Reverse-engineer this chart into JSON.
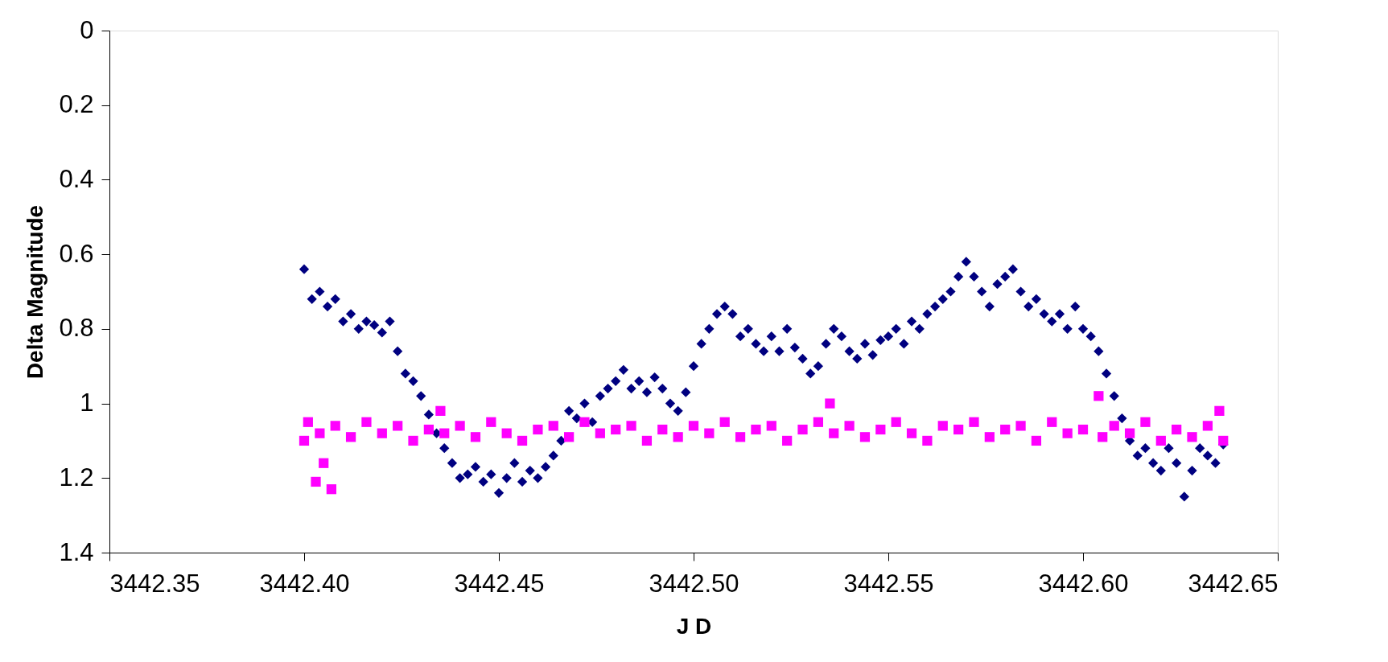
{
  "chart_data": {
    "type": "scatter",
    "xlabel": "J D",
    "ylabel": "Delta Magnitude",
    "xlim": [
      3442.35,
      3442.65
    ],
    "ylim": [
      1.4,
      0
    ],
    "xticks": [
      {
        "value": 3442.35,
        "label": "3442.35"
      },
      {
        "value": 3442.4,
        "label": "3442.40"
      },
      {
        "value": 3442.45,
        "label": "3442.45"
      },
      {
        "value": 3442.5,
        "label": "3442.50"
      },
      {
        "value": 3442.55,
        "label": "3442.55"
      },
      {
        "value": 3442.6,
        "label": "3442.60"
      },
      {
        "value": 3442.65,
        "label": "3442.65"
      }
    ],
    "yticks": [
      0,
      0.2,
      0.4,
      0.6,
      0.8,
      1,
      1.2,
      1.4
    ],
    "grid": false,
    "series": [
      {
        "color": "#000080",
        "marker": "diamond",
        "x": [
          3442.4,
          3442.402,
          3442.404,
          3442.406,
          3442.408,
          3442.41,
          3442.412,
          3442.414,
          3442.416,
          3442.418,
          3442.42,
          3442.422,
          3442.424,
          3442.426,
          3442.428,
          3442.43,
          3442.432,
          3442.434,
          3442.436,
          3442.438,
          3442.44,
          3442.442,
          3442.444,
          3442.446,
          3442.448,
          3442.45,
          3442.452,
          3442.454,
          3442.456,
          3442.458,
          3442.46,
          3442.462,
          3442.464,
          3442.466,
          3442.468,
          3442.47,
          3442.472,
          3442.474,
          3442.476,
          3442.478,
          3442.48,
          3442.482,
          3442.484,
          3442.486,
          3442.488,
          3442.49,
          3442.492,
          3442.494,
          3442.496,
          3442.498,
          3442.5,
          3442.502,
          3442.504,
          3442.506,
          3442.508,
          3442.51,
          3442.512,
          3442.514,
          3442.516,
          3442.518,
          3442.52,
          3442.522,
          3442.524,
          3442.526,
          3442.528,
          3442.53,
          3442.532,
          3442.534,
          3442.536,
          3442.538,
          3442.54,
          3442.542,
          3442.544,
          3442.546,
          3442.548,
          3442.55,
          3442.552,
          3442.554,
          3442.556,
          3442.558,
          3442.56,
          3442.562,
          3442.564,
          3442.566,
          3442.568,
          3442.57,
          3442.572,
          3442.574,
          3442.576,
          3442.578,
          3442.58,
          3442.582,
          3442.584,
          3442.586,
          3442.588,
          3442.59,
          3442.592,
          3442.594,
          3442.596,
          3442.598,
          3442.6,
          3442.602,
          3442.604,
          3442.606,
          3442.608,
          3442.61,
          3442.612,
          3442.614,
          3442.616,
          3442.618,
          3442.62,
          3442.622,
          3442.624,
          3442.626,
          3442.628,
          3442.63,
          3442.632,
          3442.634,
          3442.636
        ],
        "values": [
          0.64,
          0.72,
          0.7,
          0.74,
          0.72,
          0.78,
          0.76,
          0.8,
          0.78,
          0.79,
          0.81,
          0.78,
          0.86,
          0.92,
          0.94,
          0.98,
          1.03,
          1.08,
          1.12,
          1.16,
          1.2,
          1.19,
          1.17,
          1.21,
          1.19,
          1.24,
          1.2,
          1.16,
          1.21,
          1.18,
          1.2,
          1.17,
          1.14,
          1.1,
          1.02,
          1.04,
          1.0,
          1.05,
          0.98,
          0.96,
          0.94,
          0.91,
          0.96,
          0.94,
          0.97,
          0.93,
          0.96,
          1.0,
          1.02,
          0.97,
          0.9,
          0.84,
          0.8,
          0.76,
          0.74,
          0.76,
          0.82,
          0.8,
          0.84,
          0.86,
          0.82,
          0.86,
          0.8,
          0.85,
          0.88,
          0.92,
          0.9,
          0.84,
          0.8,
          0.82,
          0.86,
          0.88,
          0.84,
          0.87,
          0.83,
          0.82,
          0.8,
          0.84,
          0.78,
          0.8,
          0.76,
          0.74,
          0.72,
          0.7,
          0.66,
          0.62,
          0.66,
          0.7,
          0.74,
          0.68,
          0.66,
          0.64,
          0.7,
          0.74,
          0.72,
          0.76,
          0.78,
          0.76,
          0.8,
          0.74,
          0.8,
          0.82,
          0.86,
          0.92,
          0.98,
          1.04,
          1.1,
          1.14,
          1.12,
          1.16,
          1.18,
          1.12,
          1.16,
          1.25,
          1.18,
          1.12,
          1.14,
          1.16,
          1.11
        ]
      },
      {
        "color": "#ff00ff",
        "marker": "square",
        "x": [
          3442.4,
          3442.401,
          3442.403,
          3442.404,
          3442.405,
          3442.407,
          3442.408,
          3442.412,
          3442.416,
          3442.42,
          3442.424,
          3442.428,
          3442.432,
          3442.435,
          3442.436,
          3442.44,
          3442.444,
          3442.448,
          3442.452,
          3442.456,
          3442.46,
          3442.464,
          3442.468,
          3442.472,
          3442.476,
          3442.48,
          3442.484,
          3442.488,
          3442.492,
          3442.496,
          3442.5,
          3442.504,
          3442.508,
          3442.512,
          3442.516,
          3442.52,
          3442.524,
          3442.528,
          3442.532,
          3442.535,
          3442.536,
          3442.54,
          3442.544,
          3442.548,
          3442.552,
          3442.556,
          3442.56,
          3442.564,
          3442.568,
          3442.572,
          3442.576,
          3442.58,
          3442.584,
          3442.588,
          3442.592,
          3442.596,
          3442.6,
          3442.604,
          3442.605,
          3442.608,
          3442.612,
          3442.616,
          3442.62,
          3442.624,
          3442.628,
          3442.632,
          3442.635,
          3442.636
        ],
        "values": [
          1.1,
          1.05,
          1.21,
          1.08,
          1.16,
          1.23,
          1.06,
          1.09,
          1.05,
          1.08,
          1.06,
          1.1,
          1.07,
          1.02,
          1.08,
          1.06,
          1.09,
          1.05,
          1.08,
          1.1,
          1.07,
          1.06,
          1.09,
          1.05,
          1.08,
          1.07,
          1.06,
          1.1,
          1.07,
          1.09,
          1.06,
          1.08,
          1.05,
          1.09,
          1.07,
          1.06,
          1.1,
          1.07,
          1.05,
          1.0,
          1.08,
          1.06,
          1.09,
          1.07,
          1.05,
          1.08,
          1.1,
          1.06,
          1.07,
          1.05,
          1.09,
          1.07,
          1.06,
          1.1,
          1.05,
          1.08,
          1.07,
          0.98,
          1.09,
          1.06,
          1.08,
          1.05,
          1.1,
          1.07,
          1.09,
          1.06,
          1.02,
          1.1
        ]
      }
    ]
  }
}
